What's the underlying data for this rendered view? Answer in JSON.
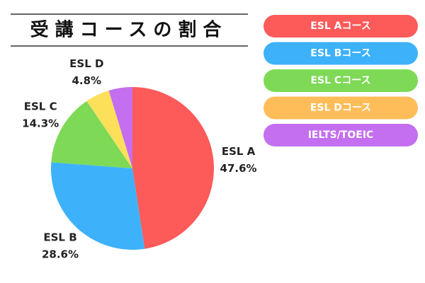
{
  "chart_data": {
    "type": "pie",
    "title": "受講コースの割合",
    "categories": [
      "ESL Aコース",
      "ESL Bコース",
      "ESL Cコース",
      "ESL Dコース",
      "IELTS/TOEIC"
    ],
    "slice_labels": [
      "ESL A",
      "ESL B",
      "ESL C",
      "ESL D",
      null
    ],
    "values": [
      47.6,
      28.6,
      14.3,
      4.8,
      4.7
    ],
    "value_labels": [
      "47.6%",
      "28.6%",
      "14.3%",
      "4.8%",
      null
    ],
    "colors": [
      "#fd5a5a",
      "#3db2fb",
      "#7ed957",
      "#fde05a",
      "#c46ef0"
    ],
    "legend_colors": [
      "#fd5a5a",
      "#3db2fb",
      "#7ed957",
      "#ffbd59",
      "#c46ef0"
    ]
  }
}
